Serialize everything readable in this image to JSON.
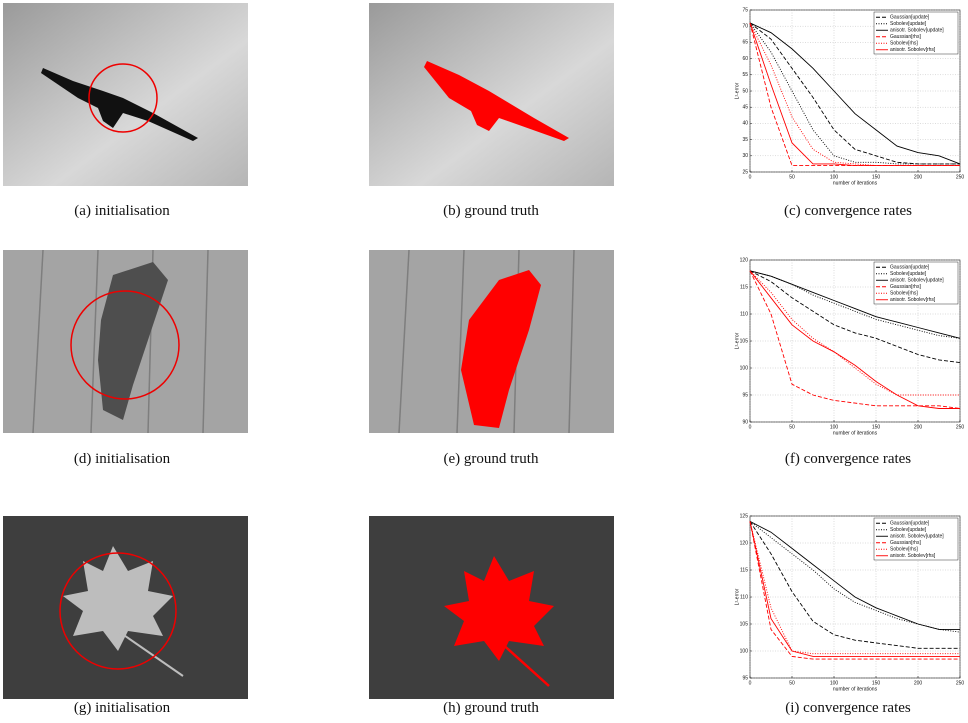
{
  "panels": [
    {
      "caption": "(a) initialisation"
    },
    {
      "caption": "(b) ground truth"
    },
    {
      "caption": "(c) convergence rates",
      "chart_data": {
        "type": "line",
        "xlabel": "number of iterations",
        "ylabel": "L²-error",
        "x": [
          0,
          25,
          50,
          75,
          100,
          125,
          150,
          175,
          200,
          225,
          250
        ],
        "xlim": [
          0,
          250
        ],
        "xticks": [
          0,
          50,
          100,
          150,
          200,
          250
        ],
        "ylim": [
          25,
          75
        ],
        "yticks": [
          25,
          30,
          35,
          40,
          45,
          50,
          55,
          60,
          65,
          70,
          75
        ],
        "grid": true,
        "legend": "upper right",
        "series": [
          {
            "name": "Gaussian[update]",
            "color": "#000000",
            "style": "dashed",
            "values": [
              71,
              66,
              57,
              48,
              38,
              32,
              30,
              28,
              27.5,
              27.5,
              27.5
            ]
          },
          {
            "name": "Sobolev[update]",
            "color": "#000000",
            "style": "dotted",
            "values": [
              71,
              62,
              50,
              38,
              30,
              28,
              28,
              27.5,
              27.5,
              27.5,
              27.5
            ]
          },
          {
            "name": "anisotr. Sobolev[update]",
            "color": "#000000",
            "style": "solid",
            "values": [
              71,
              68,
              63,
              57,
              50,
              43,
              38,
              33,
              31,
              30,
              27.5
            ]
          },
          {
            "name": "Gaussian[rhs]",
            "color": "#ff0000",
            "style": "dashed",
            "values": [
              71,
              45,
              27,
              27,
              27,
              27,
              27,
              27,
              27,
              27,
              27
            ]
          },
          {
            "name": "Sobolev[rhs]",
            "color": "#ff0000",
            "style": "dotted",
            "values": [
              71,
              58,
              42,
              32,
              28,
              27.5,
              27,
              27,
              27,
              27,
              27
            ]
          },
          {
            "name": "anisotr. Sobolev[rhs]",
            "color": "#ff0000",
            "style": "solid",
            "values": [
              71,
              52,
              34,
              27.5,
              27.5,
              27,
              27,
              27,
              27,
              27,
              27
            ]
          }
        ]
      }
    },
    {
      "caption": "(d) initialisation"
    },
    {
      "caption": "(e) ground truth"
    },
    {
      "caption": "(f) convergence rates",
      "chart_data": {
        "type": "line",
        "xlabel": "number of iterations",
        "ylabel": "L²-error",
        "x": [
          0,
          25,
          50,
          75,
          100,
          125,
          150,
          175,
          200,
          225,
          250
        ],
        "xlim": [
          0,
          250
        ],
        "xticks": [
          0,
          50,
          100,
          150,
          200,
          250
        ],
        "ylim": [
          90,
          120
        ],
        "yticks": [
          90,
          95,
          100,
          105,
          110,
          115,
          120
        ],
        "grid": true,
        "legend": "upper right",
        "series": [
          {
            "name": "Gaussian[update]",
            "color": "#000000",
            "style": "dashed",
            "values": [
              118,
              116,
              113,
              110.5,
              108,
              106.5,
              105.5,
              104,
              102.5,
              101.5,
              101
            ]
          },
          {
            "name": "Sobolev[update]",
            "color": "#000000",
            "style": "dotted",
            "values": [
              118,
              117,
              115.5,
              113.5,
              112,
              110.5,
              109,
              108,
              107,
              106,
              105.5
            ]
          },
          {
            "name": "anisotr. Sobolev[update]",
            "color": "#000000",
            "style": "solid",
            "values": [
              118,
              117,
              115.5,
              114,
              112.5,
              111,
              109.5,
              108.5,
              107.5,
              106.5,
              105.5
            ]
          },
          {
            "name": "Gaussian[rhs]",
            "color": "#ff0000",
            "style": "dashed",
            "values": [
              118,
              110,
              97,
              95,
              94,
              93.5,
              93,
              93,
              93,
              93,
              92.5
            ]
          },
          {
            "name": "Sobolev[rhs]",
            "color": "#ff0000",
            "style": "dotted",
            "values": [
              118,
              114,
              109,
              105.5,
              103,
              100,
              97,
              95,
              95,
              95,
              95
            ]
          },
          {
            "name": "anisotr. Sobolev[rhs]",
            "color": "#ff0000",
            "style": "solid",
            "values": [
              118,
              113,
              108,
              105,
              103,
              100.5,
              97.5,
              95,
              93,
              92.5,
              92.5
            ]
          }
        ]
      }
    },
    {
      "caption": "(g) initialisation"
    },
    {
      "caption": "(h) ground truth"
    },
    {
      "caption": "(i) convergence rates",
      "chart_data": {
        "type": "line",
        "xlabel": "number of iterations",
        "ylabel": "L²-error",
        "x": [
          0,
          25,
          50,
          75,
          100,
          125,
          150,
          175,
          200,
          225,
          250
        ],
        "xlim": [
          0,
          250
        ],
        "xticks": [
          0,
          50,
          100,
          150,
          200,
          250
        ],
        "ylim": [
          95,
          125
        ],
        "yticks": [
          95,
          100,
          105,
          110,
          115,
          120,
          125
        ],
        "grid": true,
        "legend": "upper right",
        "series": [
          {
            "name": "Gaussian[update]",
            "color": "#000000",
            "style": "dashed",
            "values": [
              124,
              118,
              111,
              105.5,
              103,
              102,
              101.5,
              101,
              100.5,
              100.5,
              100.5
            ]
          },
          {
            "name": "Sobolev[update]",
            "color": "#000000",
            "style": "dotted",
            "values": [
              124,
              121,
              118,
              115,
              111.5,
              109,
              107.5,
              106,
              105,
              104,
              103.5
            ]
          },
          {
            "name": "anisotr. Sobolev[update]",
            "color": "#000000",
            "style": "solid",
            "values": [
              124,
              122,
              119,
              116,
              113,
              110,
              108,
              106.5,
              105,
              104,
              104
            ]
          },
          {
            "name": "Gaussian[rhs]",
            "color": "#ff0000",
            "style": "dashed",
            "values": [
              124,
              104,
              99,
              98.5,
              98.5,
              98.5,
              98.5,
              98.5,
              98.5,
              98.5,
              98.5
            ]
          },
          {
            "name": "Sobolev[rhs]",
            "color": "#ff0000",
            "style": "dotted",
            "values": [
              124,
              108,
              100,
              99.5,
              99.5,
              99.5,
              99.5,
              99.5,
              99.5,
              99.5,
              99.5
            ]
          },
          {
            "name": "anisotr. Sobolev[rhs]",
            "color": "#ff0000",
            "style": "solid",
            "values": [
              124,
              106,
              100,
              99,
              99,
              99,
              99,
              99,
              99,
              99,
              99
            ]
          }
        ]
      }
    }
  ]
}
